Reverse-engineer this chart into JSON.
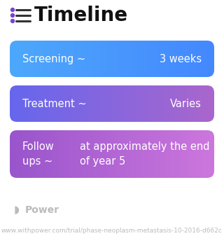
{
  "title": "Timeline",
  "title_fontsize": 20,
  "title_color": "#111111",
  "title_icon_color": "#7744cc",
  "background_color": "#ffffff",
  "rows": [
    {
      "label": "Screening ~",
      "value": "3 weeks",
      "color_left": "#4da8fb",
      "color_right": "#4488ff",
      "text_color": "#ffffff",
      "label_fontsize": 10.5,
      "value_fontsize": 10.5,
      "multiline": false
    },
    {
      "label": "Treatment ~",
      "value": "Varies",
      "color_left": "#6666ee",
      "color_right": "#aa66cc",
      "text_color": "#ffffff",
      "label_fontsize": 10.5,
      "value_fontsize": 10.5,
      "multiline": false
    },
    {
      "label": "Follow\nups ~",
      "value": "at approximately the end\nof year 5",
      "color_left": "#9955cc",
      "color_right": "#cc77dd",
      "text_color": "#ffffff",
      "label_fontsize": 10.5,
      "value_fontsize": 10.5,
      "multiline": true
    }
  ],
  "footer_text": "Power",
  "footer_url": "www.withpower.com/trial/phase-neoplasm-metastasis-10-2016-d662c",
  "footer_color": "#bbbbbb",
  "footer_fontsize": 6.5,
  "footer_text_fontsize": 10
}
